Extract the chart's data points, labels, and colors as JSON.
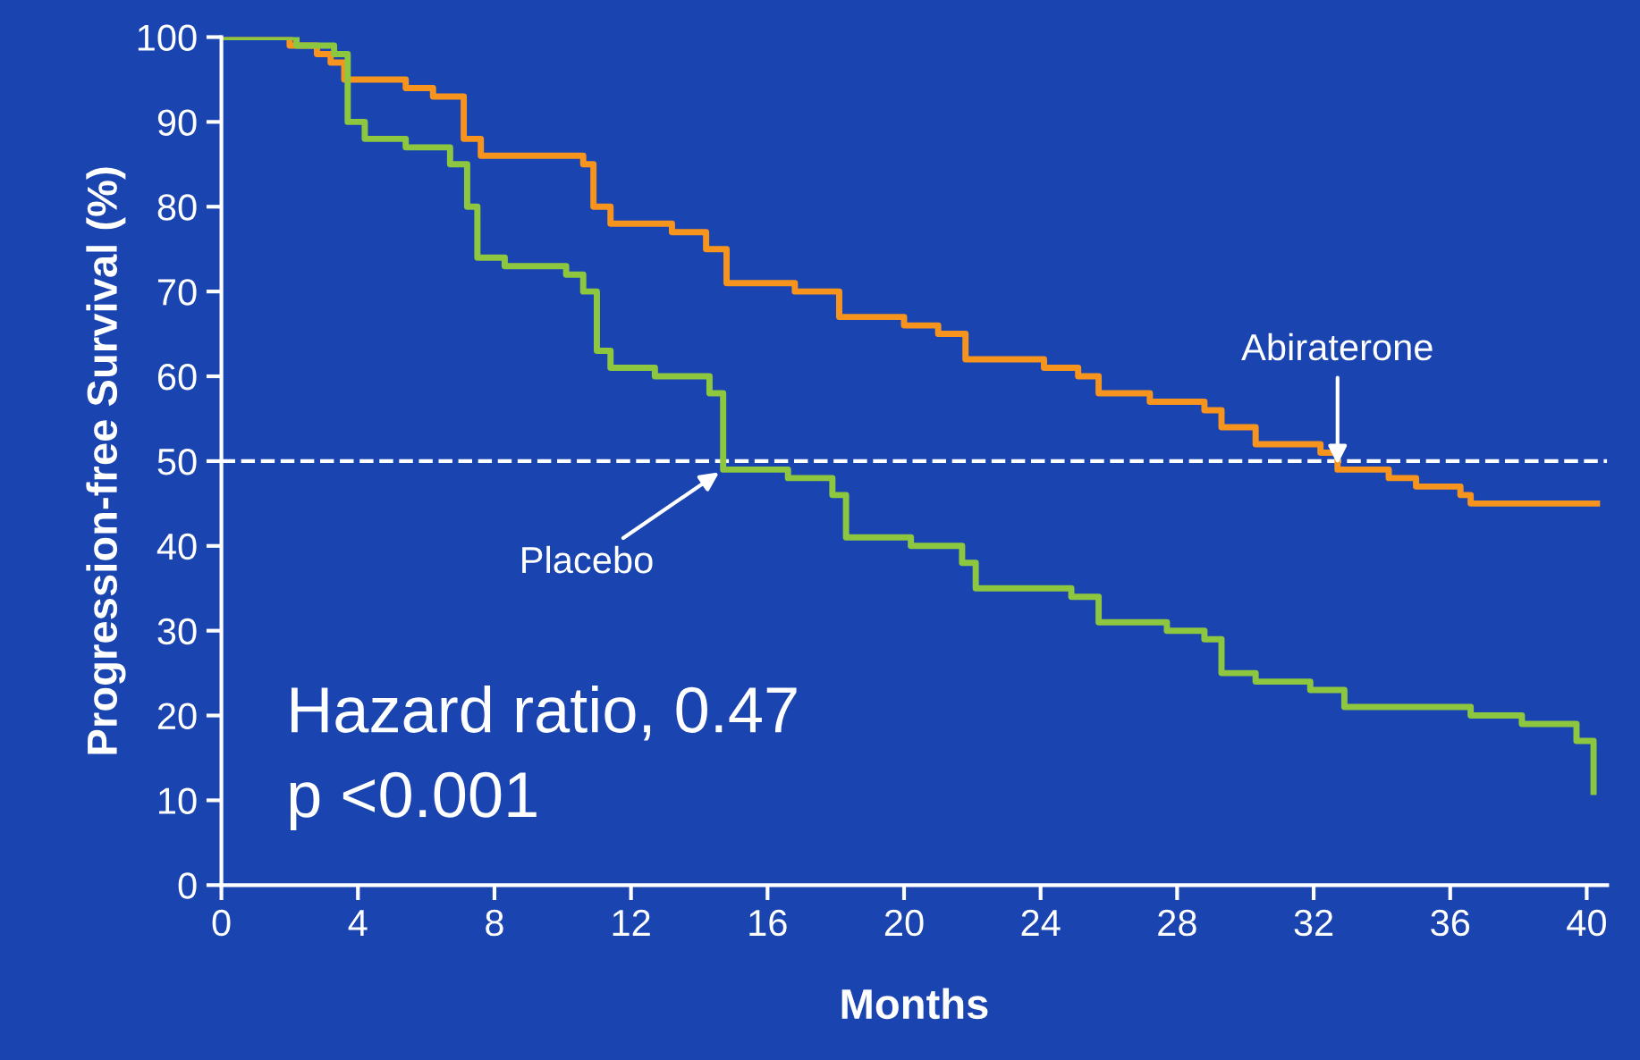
{
  "chart_data": {
    "type": "step",
    "xlabel": "Months",
    "ylabel": "Progression-free Survival (%)",
    "xlim": [
      0,
      40.6
    ],
    "ylim": [
      0,
      100
    ],
    "xticks": [
      0,
      4,
      8,
      12,
      16,
      20,
      24,
      28,
      32,
      36,
      40
    ],
    "yticks": [
      0,
      10,
      20,
      30,
      40,
      50,
      60,
      70,
      80,
      90,
      100
    ],
    "grid": false,
    "legend": false,
    "marker": "none",
    "line_style": "solid",
    "series": [
      {
        "name": "Abiraterone",
        "color": "#f7941d",
        "x": [
          0,
          2,
          2.8,
          3.2,
          3.6,
          5.4,
          6.2,
          7.1,
          7.6,
          10.6,
          10.9,
          11.4,
          13.2,
          14.2,
          14.8,
          16.8,
          18.1,
          20,
          21,
          21.8,
          24.1,
          25.1,
          25.7,
          27.2,
          28.8,
          29.3,
          30.3,
          32.2,
          32.7,
          34.2,
          35,
          36.3,
          36.6,
          40.3
        ],
        "values": [
          100,
          99,
          98,
          97,
          95,
          94,
          93,
          88,
          86,
          85,
          80,
          78,
          77,
          75,
          71,
          70,
          67,
          66,
          65,
          62,
          61,
          60,
          58,
          57,
          56,
          54,
          52,
          51,
          49,
          48,
          47,
          46,
          45,
          45
        ]
      },
      {
        "name": "Placebo",
        "color": "#8dc63f",
        "x": [
          0,
          2.2,
          3.3,
          3.7,
          4.2,
          5.4,
          6.7,
          7.2,
          7.5,
          8.3,
          10.1,
          10.6,
          11,
          11.4,
          12.7,
          14.3,
          14.7,
          16.6,
          17.9,
          18.3,
          20.2,
          21.7,
          22.1,
          24.9,
          25.7,
          27.7,
          28.8,
          29.3,
          30.3,
          31.9,
          32.9,
          36.6,
          38.1,
          39.7,
          40.2
        ],
        "values": [
          100,
          99,
          98,
          90,
          88,
          87,
          85,
          80,
          74,
          73,
          72,
          70,
          63,
          61,
          60,
          58,
          49,
          48,
          46,
          41,
          40,
          38,
          35,
          34,
          31,
          30,
          29,
          25,
          24,
          23,
          21,
          20,
          19,
          17,
          11
        ]
      }
    ],
    "ref_lines": [
      {
        "axis": "y",
        "value": 50,
        "color": "#ffffff",
        "line_style": "dashed"
      }
    ],
    "annotations": [
      "Hazard ratio, 0.47",
      "p <0.001"
    ]
  }
}
